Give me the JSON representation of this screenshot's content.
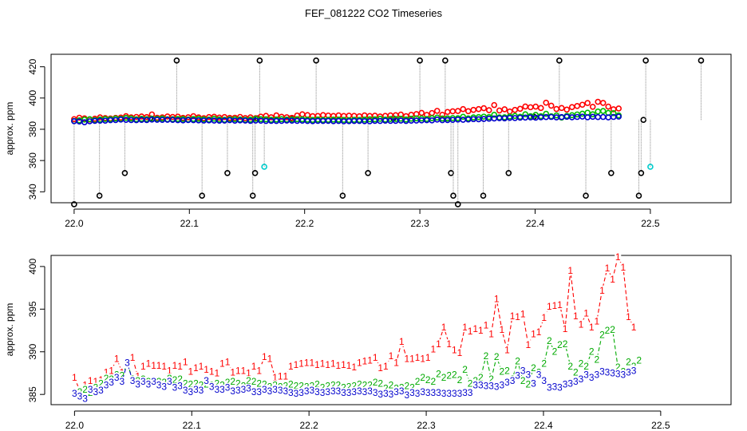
{
  "title": "FEF_081222  CO2 Timeseries",
  "chart_data": [
    {
      "id": "top",
      "type": "scatter",
      "title": "FEF_081222  CO2 Timeseries",
      "xlabel": "",
      "ylabel": "approx. ppm",
      "xlim": [
        21.98,
        22.57
      ],
      "ylim": [
        333,
        428
      ],
      "xticks": [
        22.0,
        22.1,
        22.2,
        22.3,
        22.4,
        22.5
      ],
      "xtick_labels": [
        "22.0",
        "22.1",
        "22.2",
        "22.3",
        "22.4",
        "22.5"
      ],
      "yticks": [
        340,
        360,
        380,
        400,
        420
      ],
      "ytick_labels": [
        "340",
        "360",
        "380",
        "400",
        "420"
      ],
      "x_start": 22.0,
      "x_step": 0.0045,
      "series": [
        {
          "name": "1",
          "color": "#ff0000",
          "values": [
            386.5,
            387.4,
            387.0,
            386.2,
            386.8,
            387.6,
            387.2,
            386.9,
            387.3,
            387.5,
            388.4,
            387.6,
            387.9,
            388.2,
            387.8,
            389.5,
            387.4,
            387.6,
            388.2,
            387.9,
            388.1,
            387.3,
            387.7,
            388.4,
            387.6,
            387.1,
            387.8,
            388.0,
            387.5,
            387.8,
            387.3,
            387.4,
            387.9,
            387.2,
            387.6,
            387.1,
            388.1,
            388.6,
            387.7,
            388.9,
            388.0,
            387.7,
            387.3,
            388.8,
            389.6,
            389.1,
            388.4,
            388.5,
            389.1,
            388.8,
            388.5,
            388.9,
            388.5,
            388.7,
            388.6,
            388.3,
            388.9,
            388.5,
            388.7,
            388.2,
            388.6,
            388.9,
            389.0,
            389.4,
            388.4,
            389.3,
            389.7,
            390.5,
            389.2,
            390.4,
            391.8,
            389.3,
            391.1,
            391.5,
            391.7,
            392.9,
            391.6,
            392.4,
            392.9,
            393.5,
            392.2,
            395.5,
            392.0,
            392.8,
            391.4,
            392.4,
            393.1,
            394.6,
            394.1,
            394.5,
            393.6,
            397.0,
            395.1,
            393.0,
            393.6,
            392.6,
            394.2,
            394.9,
            395.7,
            396.8,
            394.4,
            397.6,
            396.9,
            394.5,
            392.8,
            393.3
          ]
        },
        {
          "name": "2",
          "color": "#00bb00",
          "values": [
            385.3,
            385.7,
            386.2,
            386.5,
            385.9,
            386.3,
            386.6,
            386.5,
            386.9,
            386.7,
            387.3,
            386.9,
            386.4,
            386.7,
            386.5,
            386.8,
            386.7,
            386.9,
            386.4,
            386.5,
            386.6,
            386.6,
            386.3,
            386.6,
            386.7,
            386.4,
            386.2,
            386.8,
            386.3,
            386.1,
            386.4,
            386.5,
            386.3,
            386.1,
            386.2,
            386.7,
            386.5,
            386.4,
            386.1,
            386.3,
            386.5,
            386.2,
            386.3,
            386.5,
            386.4,
            386.2,
            386.0,
            386.3,
            386.0,
            386.1,
            386.2,
            386.2,
            386.0,
            385.9,
            386.1,
            386.0,
            386.2,
            386.4,
            386.4,
            386.7,
            386.2,
            386.6,
            386.6,
            386.8,
            386.3,
            386.8,
            387.0,
            386.9,
            386.6,
            387.1,
            387.5,
            386.9,
            386.9,
            387.2,
            387.1,
            388.0,
            387.0,
            387.6,
            387.8,
            388.1,
            387.8,
            389.3,
            387.6,
            387.7,
            388.2,
            388.6,
            388.0,
            389.6,
            388.4,
            389.2,
            388.4,
            389.9,
            388.3,
            388.9,
            387.5,
            388.6,
            389.0,
            389.5,
            390.0,
            390.6,
            389.6,
            391.4,
            391.7,
            390.5,
            390.3,
            388.9
          ]
        },
        {
          "name": "3",
          "color": "#0000cc",
          "values": [
            385.2,
            385.0,
            384.5,
            385.1,
            385.4,
            385.5,
            385.5,
            385.8,
            385.9,
            386.2,
            386.0,
            385.9,
            385.8,
            386.0,
            385.9,
            386.2,
            386.1,
            386.0,
            386.1,
            386.0,
            385.8,
            385.7,
            385.9,
            385.8,
            385.7,
            385.6,
            385.7,
            385.6,
            385.5,
            385.6,
            385.8,
            385.5,
            385.7,
            385.6,
            385.4,
            385.6,
            385.5,
            385.3,
            385.4,
            385.3,
            385.4,
            385.6,
            385.5,
            385.4,
            385.5,
            385.3,
            385.2,
            385.4,
            385.3,
            385.4,
            385.2,
            385.3,
            385.1,
            385.2,
            385.3,
            385.3,
            385.2,
            385.1,
            385.4,
            385.3,
            385.5,
            385.4,
            385.4,
            385.6,
            385.3,
            385.5,
            385.6,
            385.7,
            385.8,
            385.7,
            386.2,
            385.8,
            385.9,
            386.0,
            386.2,
            386.1,
            386.3,
            386.5,
            386.4,
            386.6,
            386.8,
            386.9,
            387.1,
            387.0,
            387.3,
            387.2,
            387.4,
            387.5,
            387.6,
            387.4,
            387.7,
            387.8,
            387.9,
            387.6,
            387.8,
            388.0,
            387.7,
            387.9,
            388.1,
            387.7,
            388.0,
            387.8,
            387.9,
            387.6,
            387.9,
            388.1
          ]
        }
      ],
      "outliers": {
        "name": "outliers",
        "color": "#000000",
        "x": [
          22.0,
          22.022,
          22.044,
          22.066,
          22.089,
          22.111,
          22.133,
          22.155,
          22.157,
          22.159,
          22.161,
          22.188,
          22.21,
          22.233,
          22.255,
          22.277,
          22.3,
          22.322,
          22.324,
          22.327,
          22.329,
          22.333,
          22.355,
          22.377,
          22.399,
          22.421,
          22.444,
          22.466,
          22.49,
          22.492,
          22.494,
          22.496,
          22.544
        ],
        "y": [
          332,
          337.5,
          352,
          387,
          424,
          337.5,
          352,
          337.5,
          352,
          387,
          424,
          387,
          424,
          337.5,
          352,
          387,
          424,
          424,
          387,
          352,
          337.5,
          332,
          337.5,
          352,
          388,
          424,
          337.5,
          352,
          337.5,
          352,
          386,
          424,
          424
        ]
      },
      "flagged": {
        "name": "flagged",
        "color": "#00cccc",
        "x": [
          22.165,
          22.5
        ],
        "y": [
          356,
          356
        ]
      }
    },
    {
      "id": "bottom",
      "type": "line",
      "xlabel": "",
      "ylabel": "approx. ppm",
      "xlim": [
        21.98,
        22.56
      ],
      "ylim": [
        383.8,
        401.3
      ],
      "xticks": [
        22.0,
        22.1,
        22.2,
        22.3,
        22.4,
        22.5
      ],
      "xtick_labels": [
        "22.0",
        "22.1",
        "22.2",
        "22.3",
        "22.4",
        "22.5"
      ],
      "yticks": [
        385,
        390,
        395,
        400
      ],
      "ytick_labels": [
        "385",
        "390",
        "395",
        "400"
      ],
      "x_start": 22.0,
      "x_step": 0.0045,
      "series": [
        {
          "name": "1",
          "marker": "1",
          "color": "#ff0000",
          "values": [
            387.0,
            385.4,
            386.1,
            386.6,
            386.5,
            386.7,
            387.6,
            387.8,
            389.2,
            387.6,
            388.8,
            389.3,
            387.1,
            388.3,
            388.6,
            388.4,
            388.4,
            388.3,
            387.8,
            388.4,
            388.3,
            388.8,
            387.7,
            388.1,
            388.3,
            387.9,
            387.7,
            387.5,
            388.6,
            388.8,
            387.6,
            387.8,
            387.8,
            387.5,
            388.3,
            387.8,
            389.4,
            389.2,
            387.0,
            387.1,
            387.1,
            388.3,
            388.5,
            388.6,
            388.7,
            388.7,
            388.5,
            388.6,
            388.5,
            388.6,
            388.4,
            388.5,
            388.4,
            388.2,
            388.7,
            388.9,
            389.0,
            389.3,
            388.1,
            388.3,
            389.5,
            388.7,
            391.2,
            389.2,
            389.2,
            389.3,
            389.2,
            389.3,
            390.3,
            390.9,
            392.9,
            390.9,
            390.2,
            389.9,
            392.9,
            392.4,
            392.7,
            392.5,
            393.1,
            392.1,
            396.2,
            392.6,
            390.2,
            394.2,
            394.1,
            394.4,
            390.8,
            392.1,
            392.3,
            394.0,
            395.3,
            395.4,
            395.5,
            392.7,
            399.5,
            394.2,
            393.2,
            394.5,
            392.9,
            393.6,
            397.2,
            399.8,
            398.5,
            401.1,
            399.9,
            394.1,
            392.9
          ]
        },
        {
          "name": "2",
          "marker": "2",
          "color": "#00aa00",
          "values": [
            384.9,
            385.3,
            385.6,
            385.2,
            385.8,
            386.3,
            386.9,
            386.8,
            387.3,
            387.2,
            388.6,
            386.8,
            386.6,
            386.8,
            386.5,
            386.6,
            386.5,
            386.4,
            386.9,
            386.7,
            386.8,
            386.3,
            386.2,
            386.3,
            386.1,
            386.2,
            386.1,
            386.3,
            386.1,
            386.4,
            386.5,
            386.3,
            386.0,
            386.6,
            386.5,
            386.3,
            386.2,
            385.9,
            386.1,
            385.9,
            386.0,
            386.2,
            386.0,
            386.0,
            385.9,
            386.0,
            386.2,
            385.8,
            386.0,
            386.1,
            386.1,
            385.8,
            385.9,
            386.0,
            386.2,
            386.1,
            386.1,
            386.4,
            386.3,
            385.7,
            386.1,
            385.7,
            385.8,
            386.0,
            385.8,
            386.5,
            387.0,
            386.7,
            386.5,
            387.4,
            387.0,
            387.2,
            387.3,
            386.7,
            387.9,
            386.3,
            386.6,
            387.0,
            389.5,
            386.8,
            389.4,
            387.7,
            387.8,
            386.8,
            388.9,
            386.6,
            386.2,
            388.1,
            387.6,
            388.6,
            391.3,
            390.0,
            390.8,
            390.9,
            388.3,
            387.6,
            388.6,
            388.3,
            390.0,
            389.1,
            392.0,
            392.5,
            392.6,
            388.2,
            387.7,
            388.8,
            388.3,
            389.0
          ]
        },
        {
          "name": "3",
          "marker": "3",
          "color": "#0000cc",
          "values": [
            385.1,
            384.8,
            384.5,
            385.6,
            385.3,
            385.5,
            386.1,
            386.4,
            387.0,
            386.5,
            388.7,
            386.6,
            386.2,
            386.5,
            386.2,
            386.5,
            386.1,
            385.9,
            386.5,
            385.8,
            386.0,
            385.5,
            385.3,
            385.6,
            385.5,
            386.6,
            385.9,
            385.6,
            385.6,
            385.8,
            385.4,
            385.5,
            385.6,
            385.7,
            385.3,
            385.3,
            385.6,
            385.4,
            385.6,
            385.5,
            385.4,
            385.2,
            385.1,
            385.2,
            385.4,
            385.5,
            385.3,
            385.2,
            385.3,
            385.4,
            385.4,
            385.2,
            385.2,
            385.3,
            385.4,
            385.3,
            385.4,
            385.2,
            385.0,
            385.1,
            385.0,
            385.3,
            385.4,
            384.9,
            385.2,
            385.1,
            385.3,
            385.2,
            385.2,
            385.2,
            385.1,
            385.1,
            385.1,
            385.1,
            385.2,
            385.2,
            386.1,
            386.1,
            386.0,
            386.0,
            385.9,
            386.1,
            386.4,
            386.6,
            387.2,
            387.8,
            387.3,
            386.3,
            387.3,
            386.6,
            385.8,
            385.9,
            385.8,
            386.2,
            386.3,
            386.5,
            386.8,
            387.3,
            387.0,
            387.3,
            387.7,
            387.6,
            387.5,
            387.4,
            387.3,
            387.6,
            387.8
          ]
        }
      ]
    }
  ]
}
